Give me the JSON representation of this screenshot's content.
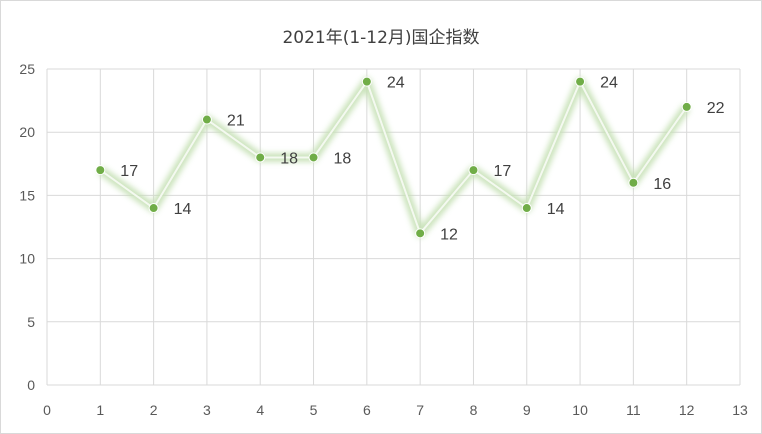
{
  "chart_data": {
    "type": "scatter",
    "title": "2021年(1-12月)国企指数",
    "x": [
      1,
      2,
      3,
      4,
      5,
      6,
      7,
      8,
      9,
      10,
      11,
      12
    ],
    "y": [
      17,
      14,
      21,
      18,
      18,
      24,
      12,
      17,
      14,
      24,
      16,
      22
    ],
    "xlim": [
      0,
      13
    ],
    "ylim": [
      0,
      25
    ],
    "xticks": [
      0,
      1,
      2,
      3,
      4,
      5,
      6,
      7,
      8,
      9,
      10,
      11,
      12,
      13
    ],
    "yticks": [
      0,
      5,
      10,
      15,
      20,
      25
    ],
    "grid": true,
    "legend": "none",
    "series_color": "#70ad47",
    "line_glow_color": "#e2efd9"
  }
}
